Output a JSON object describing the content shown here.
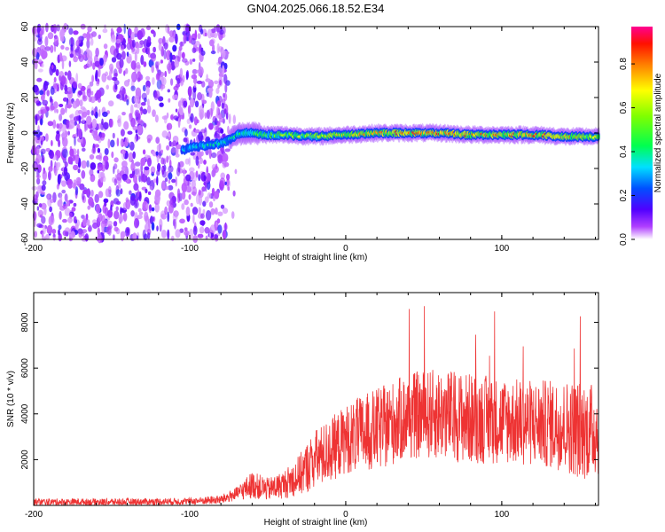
{
  "title": "GN04.2025.066.18.52.E34",
  "chart_data": [
    {
      "type": "heatmap",
      "xlabel": "Height of straight line (km)",
      "ylabel": "Frequency (Hz)",
      "xlim": [
        -200,
        162
      ],
      "ylim": [
        -60,
        60
      ],
      "xticks": [
        -200,
        -100,
        0,
        100
      ],
      "yticks": [
        -60,
        -40,
        -20,
        0,
        20,
        40,
        60
      ],
      "colorbar": {
        "label": "Normalized spectral amplitude",
        "range": [
          0,
          0.97
        ],
        "ticks": [
          0.0,
          0.2,
          0.4,
          0.6,
          0.8
        ],
        "colormap": [
          "#ffffff",
          "#a000ff",
          "#4000ff",
          "#0060ff",
          "#00ffff",
          "#00ff40",
          "#80ff00",
          "#ffff00",
          "#ff8000",
          "#ff0000",
          "#ff0090"
        ]
      },
      "noise_region_km": [
        -200,
        -75
      ],
      "trace": {
        "description_points_km": [
          -105,
          -100,
          -90,
          -80,
          -75,
          -70,
          -65,
          -60,
          -50,
          -40,
          -20,
          0,
          20,
          40,
          60,
          80,
          100,
          120,
          140,
          162
        ],
        "frequency_hz": [
          -10,
          -8,
          -7,
          -6,
          -4,
          -1,
          0,
          0,
          -1,
          -1,
          -2,
          -1,
          0,
          0,
          0,
          -1,
          -1,
          -1,
          -2,
          -2
        ],
        "peak_amplitude": [
          0.35,
          0.4,
          0.45,
          0.45,
          0.4,
          0.45,
          0.5,
          0.55,
          0.6,
          0.65,
          0.7,
          0.75,
          0.85,
          0.85,
          0.9,
          0.85,
          0.85,
          0.9,
          0.8,
          0.75
        ]
      }
    },
    {
      "type": "line",
      "xlabel": "Height of straight line (km)",
      "ylabel": "SNR (10 * v/v)",
      "xlim": [
        -200,
        162
      ],
      "ylim": [
        0,
        9300
      ],
      "xticks": [
        -200,
        -100,
        0,
        100
      ],
      "yticks": [
        2000,
        4000,
        6000,
        8000
      ],
      "line_color": "#ee3333",
      "envelope": {
        "x": [
          -200,
          -150,
          -100,
          -80,
          -70,
          -60,
          -50,
          -40,
          -30,
          -20,
          -10,
          0,
          10,
          20,
          40,
          60,
          80,
          100,
          120,
          140,
          150,
          162
        ],
        "mean": [
          150,
          150,
          180,
          250,
          500,
          900,
          700,
          900,
          1300,
          2000,
          2400,
          2900,
          3100,
          3300,
          3900,
          4000,
          3800,
          3700,
          3600,
          3500,
          3300,
          3300
        ],
        "spread": [
          150,
          150,
          150,
          200,
          300,
          600,
          500,
          600,
          900,
          1300,
          1400,
          1500,
          1700,
          1800,
          1900,
          2000,
          2000,
          1900,
          1900,
          2000,
          2200,
          2000
        ]
      }
    }
  ]
}
